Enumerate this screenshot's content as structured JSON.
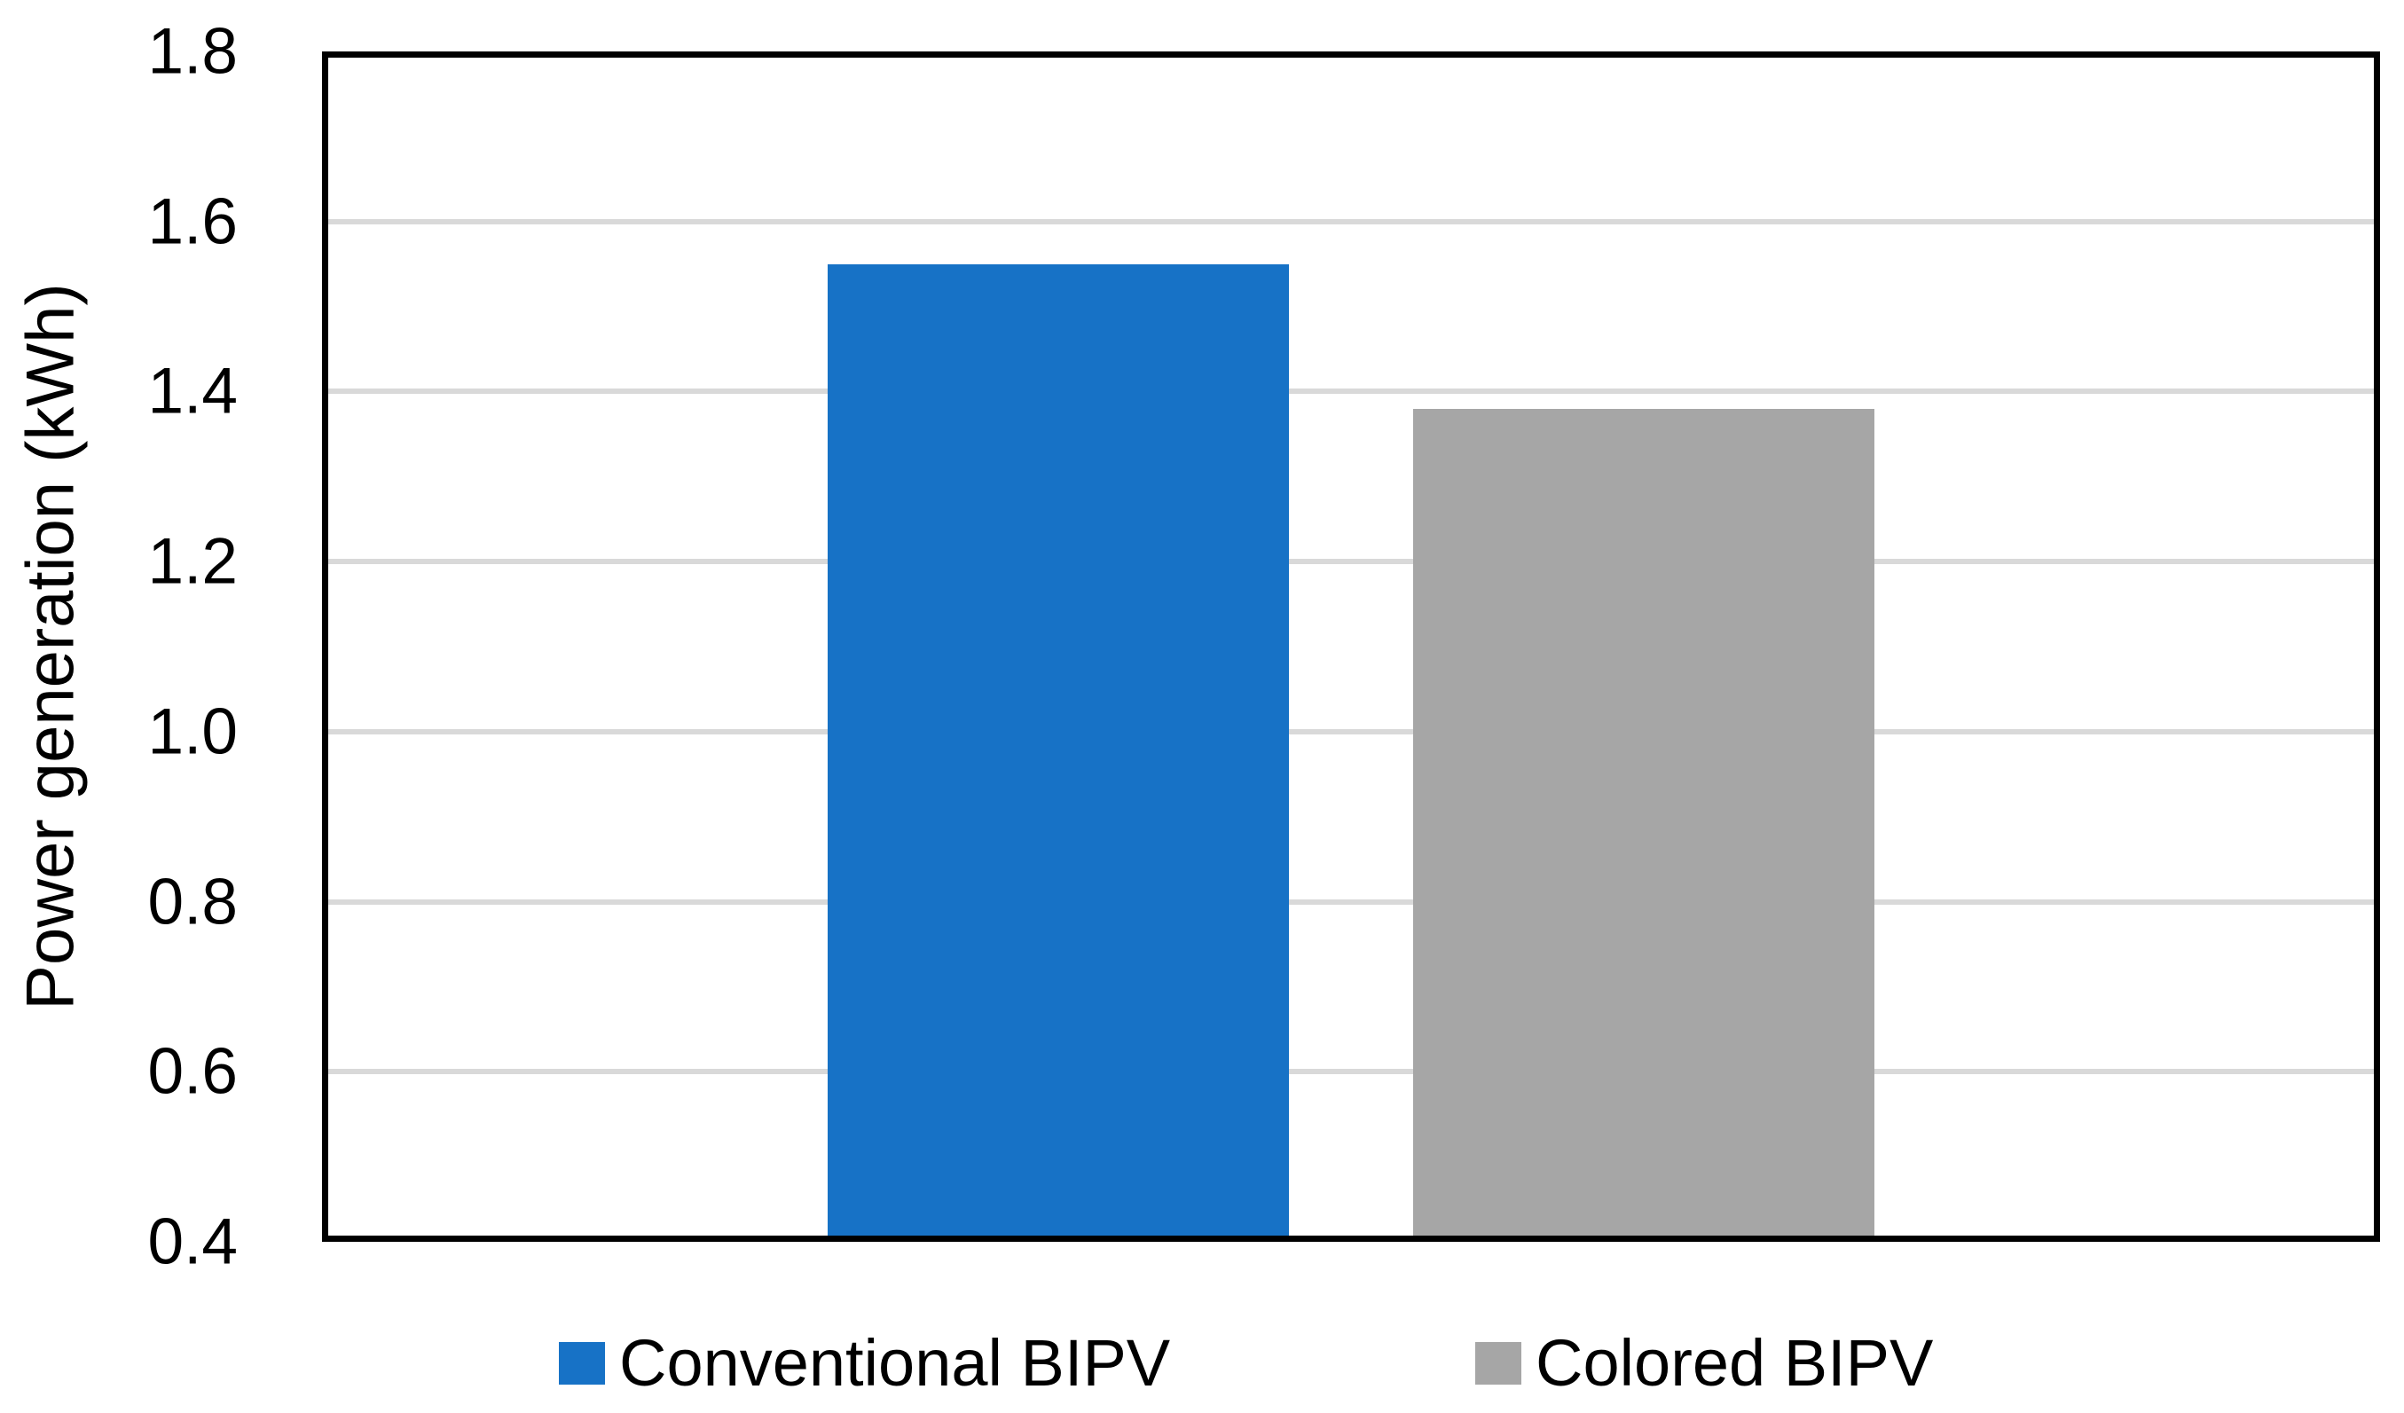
{
  "chart_data": {
    "type": "bar",
    "title": "",
    "xlabel": "",
    "ylabel": "Power generation (kWh)",
    "ylim": [
      0.4,
      1.8
    ],
    "ytick_step": 0.2,
    "yticks": [
      {
        "value": 1.8,
        "label": "1.8"
      },
      {
        "value": 1.6,
        "label": "1.6"
      },
      {
        "value": 1.4,
        "label": "1.4"
      },
      {
        "value": 1.2,
        "label": "1.2"
      },
      {
        "value": 1.0,
        "label": "1.0"
      },
      {
        "value": 0.8,
        "label": "0.8"
      },
      {
        "value": 0.6,
        "label": "0.6"
      },
      {
        "value": 0.4,
        "label": "0.4"
      }
    ],
    "grid": "horizontal",
    "gridline_color": "#D9D9D9",
    "axis_frame_color": "#000000",
    "legend_position": "bottom",
    "series": [
      {
        "name": "Conventional BIPV",
        "value": 1.55,
        "color": "#1772C6"
      },
      {
        "name": "Colored BIPV",
        "value": 1.38,
        "color": "#A6A6A6"
      }
    ]
  }
}
